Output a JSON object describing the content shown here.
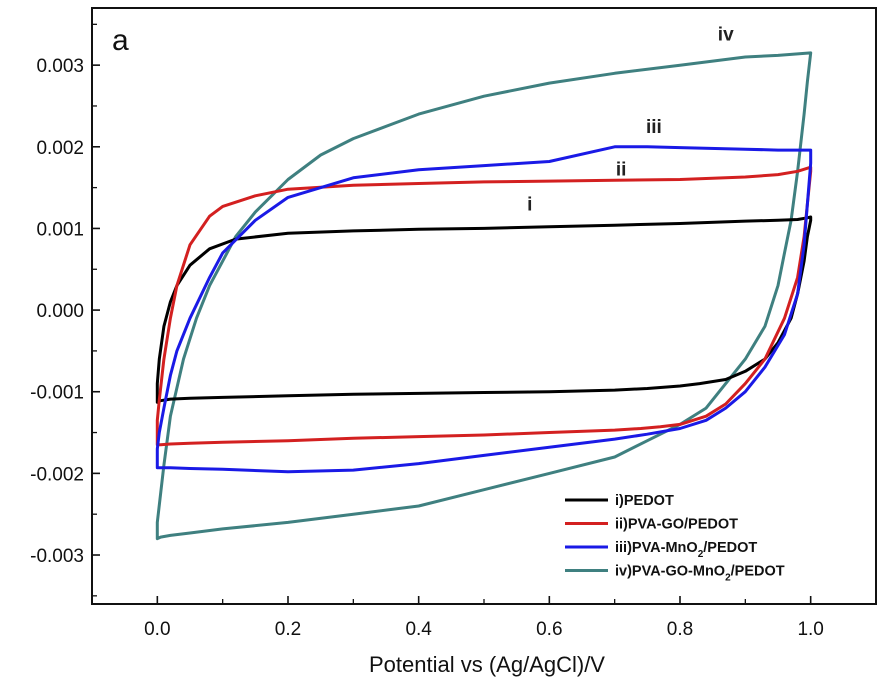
{
  "chart_data": {
    "type": "line",
    "title": "",
    "panel_label": "a",
    "xlabel": "Potential vs (Ag/AgCl)/V",
    "ylabel": "",
    "xlim": [
      -0.1,
      1.1
    ],
    "ylim": [
      -0.0036,
      0.0037
    ],
    "x_ticks": [
      0.0,
      0.2,
      0.4,
      0.6,
      0.8,
      1.0
    ],
    "x_tick_labels": [
      "0.0",
      "0.2",
      "0.4",
      "0.6",
      "0.8",
      "1.0"
    ],
    "y_ticks": [
      -0.003,
      -0.002,
      -0.001,
      0.0,
      0.001,
      0.002,
      0.003
    ],
    "y_tick_labels": [
      "-0.003",
      "-0.002",
      "-0.001",
      "0.000",
      "0.001",
      "0.002",
      "0.003"
    ],
    "grid": false,
    "legend_position": "bottom-right",
    "series": [
      {
        "name": "i)PEDOT",
        "label": "i",
        "color": "#000000",
        "label_at": [
          0.57,
          0.00122
        ],
        "x": [
          0.0,
          0.003,
          0.01,
          0.02,
          0.03,
          0.05,
          0.08,
          0.12,
          0.2,
          0.3,
          0.4,
          0.5,
          0.6,
          0.7,
          0.8,
          0.9,
          0.95,
          0.98,
          0.995,
          1.0,
          1.0,
          0.995,
          0.99,
          0.98,
          0.97,
          0.95,
          0.93,
          0.9,
          0.87,
          0.83,
          0.8,
          0.75,
          0.7,
          0.6,
          0.5,
          0.4,
          0.3,
          0.2,
          0.1,
          0.05,
          0.02,
          0.005,
          0.0
        ],
        "y": [
          -0.0009,
          -0.0006,
          -0.0002,
          0.0001,
          0.0003,
          0.00055,
          0.00075,
          0.00087,
          0.00094,
          0.00097,
          0.00099,
          0.001,
          0.00102,
          0.00104,
          0.00106,
          0.00109,
          0.0011,
          0.00111,
          0.00113,
          0.00114,
          0.0011,
          0.0009,
          0.0006,
          0.0002,
          -0.0001,
          -0.0004,
          -0.0006,
          -0.00075,
          -0.00085,
          -0.0009,
          -0.00093,
          -0.00096,
          -0.00098,
          -0.001,
          -0.00101,
          -0.00102,
          -0.00103,
          -0.00105,
          -0.00107,
          -0.00108,
          -0.00109,
          -0.00111,
          -0.00113
        ]
      },
      {
        "name": "ii)PVA-GO/PEDOT",
        "label": "ii",
        "color": "#d32020",
        "label_at": [
          0.71,
          0.00165
        ],
        "x": [
          0.0,
          0.003,
          0.01,
          0.02,
          0.03,
          0.05,
          0.08,
          0.1,
          0.15,
          0.2,
          0.3,
          0.4,
          0.5,
          0.6,
          0.7,
          0.8,
          0.9,
          0.95,
          0.98,
          1.0,
          1.0,
          0.995,
          0.99,
          0.98,
          0.96,
          0.93,
          0.9,
          0.87,
          0.84,
          0.8,
          0.77,
          0.74,
          0.7,
          0.6,
          0.5,
          0.4,
          0.3,
          0.2,
          0.1,
          0.05,
          0.02,
          0.005,
          0.0
        ],
        "y": [
          -0.00135,
          -0.0011,
          -0.0006,
          -0.0001,
          0.0003,
          0.0008,
          0.00115,
          0.00127,
          0.0014,
          0.00148,
          0.00153,
          0.00155,
          0.00157,
          0.00158,
          0.00159,
          0.0016,
          0.00163,
          0.00166,
          0.0017,
          0.00175,
          0.0017,
          0.0013,
          0.0009,
          0.0004,
          -0.0001,
          -0.0006,
          -0.0009,
          -0.00115,
          -0.0013,
          -0.0014,
          -0.00143,
          -0.00145,
          -0.00147,
          -0.0015,
          -0.00153,
          -0.00155,
          -0.00157,
          -0.0016,
          -0.00162,
          -0.00163,
          -0.00164,
          -0.00165,
          -0.00165
        ]
      },
      {
        "name": "iii)PVA-MnO2/PEDOT",
        "label": "iii",
        "color": "#1a1ae6",
        "label_at": [
          0.76,
          0.00217
        ],
        "x": [
          0.0,
          0.003,
          0.01,
          0.02,
          0.03,
          0.05,
          0.08,
          0.1,
          0.15,
          0.2,
          0.3,
          0.4,
          0.5,
          0.6,
          0.7,
          0.75,
          0.8,
          0.9,
          0.95,
          0.98,
          1.0,
          1.0,
          0.995,
          0.99,
          0.98,
          0.96,
          0.93,
          0.9,
          0.87,
          0.84,
          0.8,
          0.75,
          0.7,
          0.6,
          0.5,
          0.4,
          0.3,
          0.2,
          0.1,
          0.05,
          0.02,
          0.005,
          0.0
        ],
        "y": [
          -0.0017,
          -0.0015,
          -0.0012,
          -0.0008,
          -0.0005,
          -0.0001,
          0.0004,
          0.0007,
          0.0011,
          0.00138,
          0.00162,
          0.00172,
          0.00177,
          0.00182,
          0.002,
          0.002,
          0.00199,
          0.00197,
          0.00196,
          0.00196,
          0.00196,
          0.0018,
          0.0013,
          0.0008,
          0.0002,
          -0.0003,
          -0.0007,
          -0.001,
          -0.0012,
          -0.00135,
          -0.00145,
          -0.00152,
          -0.00158,
          -0.00168,
          -0.00178,
          -0.00188,
          -0.00196,
          -0.00198,
          -0.00195,
          -0.00194,
          -0.00193,
          -0.00193,
          -0.00193
        ]
      },
      {
        "name": "iv)PVA-GO-MnO2/PEDOT",
        "label": "iv",
        "color": "#3f8080",
        "label_at": [
          0.87,
          0.0033
        ],
        "x": [
          0.0,
          0.01,
          0.02,
          0.04,
          0.06,
          0.08,
          0.1,
          0.12,
          0.15,
          0.2,
          0.25,
          0.3,
          0.4,
          0.5,
          0.6,
          0.7,
          0.8,
          0.9,
          0.95,
          1.0,
          0.995,
          0.99,
          0.98,
          0.97,
          0.96,
          0.95,
          0.93,
          0.9,
          0.87,
          0.84,
          0.8,
          0.75,
          0.7,
          0.6,
          0.5,
          0.4,
          0.3,
          0.2,
          0.1,
          0.05,
          0.02,
          0.005,
          0.0
        ],
        "y": [
          -0.0026,
          -0.0019,
          -0.0013,
          -0.0006,
          -0.0001,
          0.0003,
          0.0006,
          0.0009,
          0.0012,
          0.0016,
          0.0019,
          0.0021,
          0.0024,
          0.00262,
          0.00278,
          0.0029,
          0.003,
          0.0031,
          0.00312,
          0.00315,
          0.0028,
          0.0024,
          0.0017,
          0.0011,
          0.0007,
          0.0003,
          -0.0002,
          -0.0006,
          -0.0009,
          -0.0012,
          -0.0014,
          -0.0016,
          -0.0018,
          -0.002,
          -0.0022,
          -0.0024,
          -0.0025,
          -0.0026,
          -0.00268,
          -0.00273,
          -0.00276,
          -0.00278,
          -0.0028
        ]
      }
    ],
    "legend": [
      {
        "label": "i)PEDOT",
        "color": "#000000"
      },
      {
        "label": "ii)PVA-GO/PEDOT",
        "color": "#d32020"
      },
      {
        "label_main": "iii)PVA-MnO",
        "label_sub": "2",
        "label_tail": "/PEDOT",
        "color": "#1a1ae6"
      },
      {
        "label_main": "iv)PVA-GO-MnO",
        "label_sub": "2",
        "label_tail": "/PEDOT",
        "color": "#3f8080"
      }
    ]
  }
}
